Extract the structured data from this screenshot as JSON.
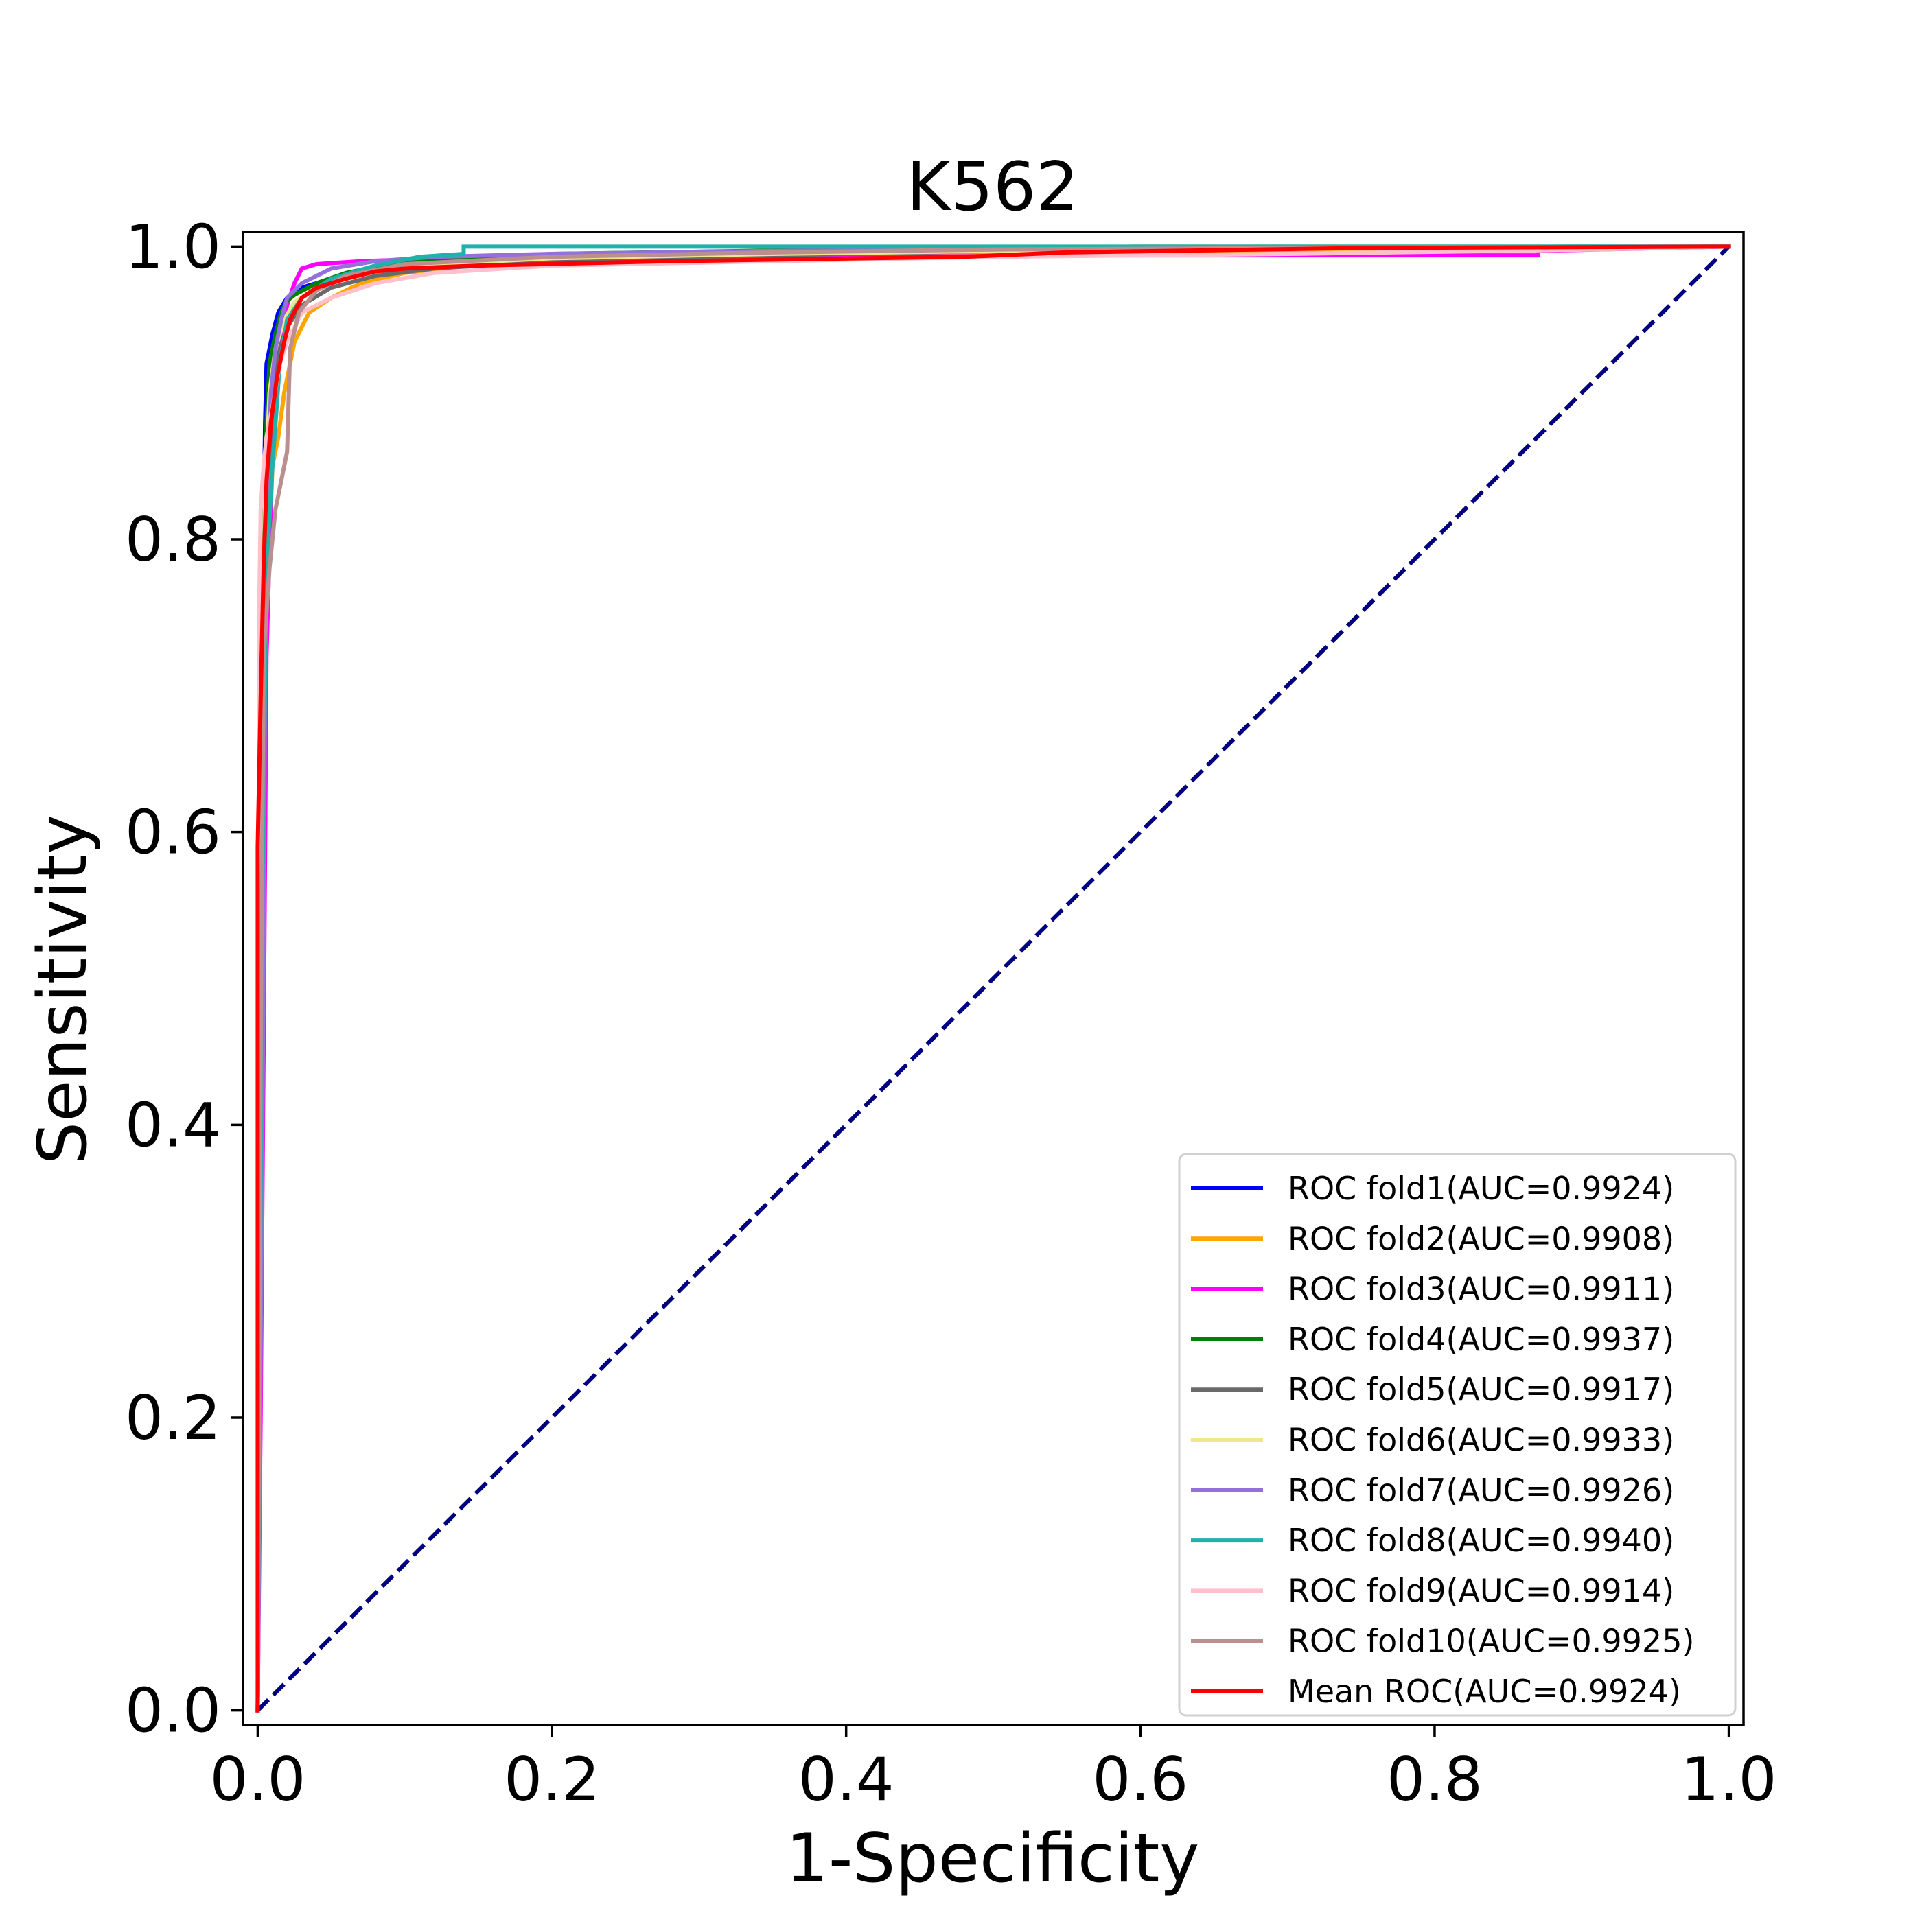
{
  "chart_data": {
    "type": "line",
    "title": "K562",
    "xlabel": "1-Specificity",
    "ylabel": "Sensitivity",
    "xlim": [
      -0.01,
      1.01
    ],
    "ylim": [
      -0.01,
      1.01
    ],
    "xticks": [
      0.0,
      0.2,
      0.4,
      0.6,
      0.8,
      1.0
    ],
    "xtick_labels": [
      "0.0",
      "0.2",
      "0.4",
      "0.6",
      "0.8",
      "1.0"
    ],
    "yticks": [
      0.0,
      0.2,
      0.4,
      0.6,
      0.8,
      1.0
    ],
    "ytick_labels": [
      "0.0",
      "0.2",
      "0.4",
      "0.6",
      "0.8",
      "1.0"
    ],
    "grid": false,
    "legend_position": "lower-right",
    "diagonal": {
      "x": [
        0,
        1
      ],
      "y": [
        0,
        1
      ],
      "color": "#000080",
      "style": "dashed"
    },
    "series": [
      {
        "name": "ROC fold1(AUC=0.9924)",
        "color": "#0000ff",
        "x": [
          0,
          0.002,
          0.004,
          0.005,
          0.006,
          0.008,
          0.01,
          0.014,
          0.02,
          0.03,
          0.05,
          0.08,
          0.12,
          0.2,
          0.35,
          0.5,
          0.7,
          0.9,
          1.0
        ],
        "y": [
          0,
          0.55,
          0.8,
          0.88,
          0.92,
          0.93,
          0.94,
          0.955,
          0.965,
          0.972,
          0.978,
          0.985,
          0.99,
          0.993,
          0.996,
          0.998,
          0.999,
          1.0,
          1.0
        ]
      },
      {
        "name": "ROC fold2(AUC=0.9908)",
        "color": "#ffa500",
        "x": [
          0,
          0.003,
          0.006,
          0.01,
          0.014,
          0.018,
          0.025,
          0.035,
          0.05,
          0.07,
          0.1,
          0.15,
          0.25,
          0.4,
          0.6,
          0.73,
          0.9,
          1.0
        ],
        "y": [
          0,
          0.5,
          0.75,
          0.85,
          0.87,
          0.9,
          0.935,
          0.955,
          0.965,
          0.975,
          0.982,
          0.988,
          0.992,
          0.995,
          0.997,
          0.998,
          0.999,
          1.0
        ]
      },
      {
        "name": "ROC fold3(AUC=0.9911)",
        "color": "#ff00ff",
        "x": [
          0,
          0.002,
          0.004,
          0.006,
          0.01,
          0.015,
          0.02,
          0.025,
          0.03,
          0.04,
          0.07,
          0.1,
          0.2,
          0.4,
          0.6,
          0.83,
          0.87,
          0.87,
          1.0
        ],
        "y": [
          0,
          0.2,
          0.45,
          0.72,
          0.86,
          0.93,
          0.96,
          0.975,
          0.985,
          0.988,
          0.99,
          0.991,
          0.992,
          0.993,
          0.994,
          0.994,
          0.994,
          0.997,
          1.0
        ]
      },
      {
        "name": "ROC fold4(AUC=0.9937)",
        "color": "#008000",
        "x": [
          0,
          0.002,
          0.004,
          0.006,
          0.008,
          0.012,
          0.016,
          0.02,
          0.025,
          0.04,
          0.06,
          0.1,
          0.2,
          0.4,
          0.6,
          1.0
        ],
        "y": [
          0,
          0.6,
          0.8,
          0.88,
          0.92,
          0.94,
          0.955,
          0.963,
          0.967,
          0.975,
          0.982,
          0.99,
          0.995,
          0.998,
          1.0,
          1.0
        ]
      },
      {
        "name": "ROC fold5(AUC=0.9917)",
        "color": "#696969",
        "x": [
          0,
          0.003,
          0.006,
          0.01,
          0.015,
          0.02,
          0.03,
          0.05,
          0.08,
          0.12,
          0.2,
          0.35,
          0.5,
          0.7,
          1.0
        ],
        "y": [
          0,
          0.6,
          0.82,
          0.9,
          0.93,
          0.945,
          0.96,
          0.972,
          0.98,
          0.985,
          0.99,
          0.994,
          0.997,
          0.999,
          1.0
        ]
      },
      {
        "name": "ROC fold6(AUC=0.9933)",
        "color": "#f0e68c",
        "x": [
          0,
          0.002,
          0.005,
          0.008,
          0.012,
          0.018,
          0.025,
          0.04,
          0.06,
          0.1,
          0.2,
          0.35,
          0.5,
          0.65,
          0.8,
          1.0
        ],
        "y": [
          0,
          0.62,
          0.83,
          0.9,
          0.93,
          0.95,
          0.962,
          0.972,
          0.98,
          0.987,
          0.992,
          0.995,
          0.997,
          0.998,
          0.999,
          1.0
        ]
      },
      {
        "name": "ROC fold7(AUC=0.9926)",
        "color": "#9370db",
        "x": [
          0,
          0.003,
          0.005,
          0.007,
          0.009,
          0.012,
          0.016,
          0.02,
          0.03,
          0.05,
          0.08,
          0.12,
          0.2,
          0.35,
          0.5,
          0.7,
          1.0
        ],
        "y": [
          0,
          0.37,
          0.7,
          0.85,
          0.9,
          0.93,
          0.95,
          0.965,
          0.975,
          0.985,
          0.99,
          0.993,
          0.995,
          0.997,
          0.998,
          0.999,
          1.0
        ]
      },
      {
        "name": "ROC fold8(AUC=0.9940)",
        "color": "#20b2aa",
        "x": [
          0,
          0.003,
          0.006,
          0.01,
          0.015,
          0.02,
          0.03,
          0.05,
          0.08,
          0.11,
          0.14,
          0.14,
          0.2,
          0.37,
          1.0
        ],
        "y": [
          0,
          0.55,
          0.78,
          0.85,
          0.92,
          0.95,
          0.965,
          0.978,
          0.987,
          0.993,
          0.995,
          1.0,
          1.0,
          1.0,
          1.0
        ]
      },
      {
        "name": "ROC fold9(AUC=0.9914)",
        "color": "#ffc0cb",
        "x": [
          0,
          0.001,
          0.002,
          0.004,
          0.006,
          0.01,
          0.015,
          0.02,
          0.03,
          0.05,
          0.08,
          0.12,
          0.2,
          0.35,
          0.5,
          0.7,
          0.91,
          1.0
        ],
        "y": [
          0,
          0.75,
          0.82,
          0.85,
          0.87,
          0.89,
          0.92,
          0.935,
          0.955,
          0.965,
          0.975,
          0.982,
          0.987,
          0.99,
          0.993,
          0.995,
          0.998,
          1.0
        ]
      },
      {
        "name": "ROC fold10(AUC=0.9925)",
        "color": "#bc8f8f",
        "x": [
          0,
          0.002,
          0.004,
          0.008,
          0.012,
          0.016,
          0.02,
          0.022,
          0.028,
          0.04,
          0.06,
          0.1,
          0.2,
          0.35,
          0.5,
          0.7,
          1.0
        ],
        "y": [
          0,
          0.45,
          0.72,
          0.78,
          0.82,
          0.84,
          0.86,
          0.93,
          0.955,
          0.97,
          0.98,
          0.988,
          0.993,
          0.996,
          0.998,
          0.999,
          1.0
        ]
      },
      {
        "name": "Mean ROC(AUC=0.9924)",
        "color": "#ff0000",
        "x": [
          0,
          0.0,
          0.002,
          0.004,
          0.006,
          0.009,
          0.013,
          0.018,
          0.022,
          0.03,
          0.04,
          0.06,
          0.08,
          0.1,
          0.15,
          0.28,
          0.48,
          0.55,
          0.75,
          1.0
        ],
        "y": [
          0,
          0.59,
          0.69,
          0.78,
          0.84,
          0.88,
          0.91,
          0.935,
          0.95,
          0.965,
          0.972,
          0.978,
          0.983,
          0.985,
          0.987,
          0.99,
          0.993,
          0.996,
          0.999,
          1.0
        ]
      }
    ]
  }
}
